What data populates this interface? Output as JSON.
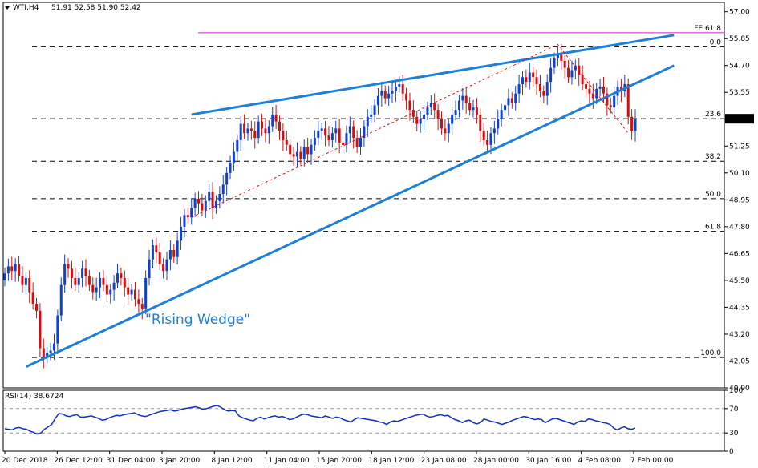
{
  "header": {
    "symbol": "WTI,H4",
    "ohlc": "51.91 52.58 51.90 52.42"
  },
  "rsi": {
    "label": "RSI(14) 38.6724",
    "levels": [
      "100",
      "70",
      "30",
      "0"
    ],
    "values": [
      37,
      36,
      35,
      38,
      39,
      37,
      36,
      33,
      31,
      28,
      30,
      36,
      40,
      44,
      54,
      62,
      61,
      58,
      57,
      59,
      60,
      56,
      56,
      57,
      58,
      56,
      54,
      51,
      52,
      55,
      57,
      59,
      58,
      60,
      61,
      62,
      63,
      60,
      58,
      57,
      59,
      61,
      63,
      65,
      66,
      67,
      68,
      66,
      67,
      69,
      70,
      71,
      72,
      73,
      71,
      69,
      70,
      72,
      74,
      75,
      72,
      68,
      66,
      67,
      66,
      58,
      55,
      53,
      51,
      50,
      54,
      56,
      53,
      55,
      57,
      58,
      56,
      57,
      55,
      52,
      53,
      56,
      59,
      61,
      60,
      58,
      57,
      56,
      55,
      58,
      56,
      54,
      56,
      55,
      52,
      50,
      48,
      52,
      55,
      54,
      53,
      52,
      51,
      50,
      48,
      47,
      44,
      48,
      50,
      49,
      51,
      53,
      55,
      57,
      59,
      60,
      61,
      58,
      56,
      57,
      59,
      60,
      58,
      59,
      55,
      52,
      50,
      47,
      50,
      51,
      47,
      45,
      47,
      53,
      51,
      49,
      48,
      46,
      44,
      46,
      48,
      51,
      53,
      55,
      57,
      56,
      54,
      52,
      53,
      52,
      47,
      50,
      53,
      54,
      52,
      50,
      48,
      46,
      44,
      48,
      50,
      49,
      53,
      52,
      50,
      49,
      47,
      46,
      44,
      38,
      35,
      38,
      40,
      37,
      36,
      38
    ]
  },
  "chart_data": {
    "type": "candlestick",
    "title": "WTI,H4",
    "ylim": [
      40.9,
      57.4
    ],
    "y_ticks": [
      "57.00",
      "55.85",
      "54.70",
      "53.55",
      "52.40",
      "51.25",
      "50.10",
      "48.95",
      "47.80",
      "46.65",
      "45.50",
      "44.35",
      "43.20",
      "42.05",
      "40.90"
    ],
    "x_ticks": [
      "20 Dec 2018",
      "26 Dec 12:00",
      "31 Dec 04:00",
      "3 Jan 20:00",
      "8 Jan 12:00",
      "11 Jan 04:00",
      "15 Jan 20:00",
      "18 Jan 12:00",
      "23 Jan 08:00",
      "28 Jan 00:00",
      "30 Jan 16:00",
      "4 Feb 08:00",
      "7 Feb 00:00"
    ],
    "current_price": "52.42",
    "closes": [
      45.8,
      46.1,
      45.9,
      46.2,
      45.7,
      45.3,
      45.6,
      45.0,
      44.5,
      44.2,
      42.6,
      42.2,
      42.4,
      42.5,
      42.8,
      44.0,
      45.3,
      46.2,
      46.0,
      45.6,
      45.3,
      45.6,
      46.0,
      45.7,
      45.3,
      45.0,
      45.2,
      45.6,
      45.3,
      44.9,
      45.1,
      45.4,
      45.8,
      45.6,
      45.2,
      44.9,
      45.1,
      44.7,
      44.5,
      44.3,
      45.6,
      46.4,
      47.0,
      46.7,
      46.2,
      45.9,
      46.4,
      46.8,
      46.5,
      47.2,
      47.8,
      48.3,
      48.2,
      48.6,
      49.0,
      48.8,
      48.5,
      48.9,
      49.3,
      48.6,
      48.9,
      49.2,
      49.6,
      50.1,
      50.5,
      51.0,
      51.5,
      52.2,
      51.8,
      52.0,
      51.9,
      51.6,
      52.3,
      52.0,
      51.8,
      52.1,
      52.6,
      52.3,
      51.9,
      51.5,
      51.3,
      50.9,
      50.8,
      51.0,
      50.7,
      51.2,
      50.9,
      51.3,
      51.6,
      51.9,
      52.0,
      51.7,
      51.5,
      51.8,
      52.0,
      51.4,
      51.3,
      51.8,
      52.1,
      51.6,
      51.2,
      51.6,
      52.1,
      52.5,
      52.6,
      53.0,
      53.4,
      53.6,
      53.3,
      53.5,
      53.6,
      53.8,
      53.9,
      53.5,
      53.2,
      52.8,
      52.5,
      52.2,
      52.4,
      52.6,
      52.9,
      53.1,
      52.8,
      52.4,
      52.0,
      51.8,
      52.2,
      52.6,
      52.8,
      53.2,
      53.4,
      53.1,
      52.8,
      52.9,
      52.6,
      51.9,
      51.5,
      51.3,
      51.8,
      52.0,
      52.4,
      52.8,
      53.0,
      53.3,
      53.1,
      53.5,
      53.9,
      54.2,
      54.0,
      54.4,
      54.2,
      53.9,
      53.6,
      53.4,
      54.0,
      54.6,
      55.0,
      55.2,
      54.9,
      54.6,
      54.2,
      54.5,
      54.7,
      54.3,
      53.9,
      53.7,
      53.5,
      53.3,
      53.7,
      53.8,
      53.5,
      53.0,
      52.9,
      53.4,
      53.8,
      53.6,
      53.9,
      52.5,
      51.9,
      52.42
    ],
    "fib_levels": [
      {
        "label": "FE 61.8",
        "value": 56.1
      },
      {
        "label": "0.0",
        "value": 55.5
      },
      {
        "label": "23.6",
        "value": 52.42
      },
      {
        "label": "38.2",
        "value": 50.6
      },
      {
        "label": "50.0",
        "value": 49.0
      },
      {
        "label": "61.8",
        "value": 47.6
      },
      {
        "label": "100.0",
        "value": 42.2
      }
    ],
    "annotation": "\"Rising Wedge\""
  }
}
